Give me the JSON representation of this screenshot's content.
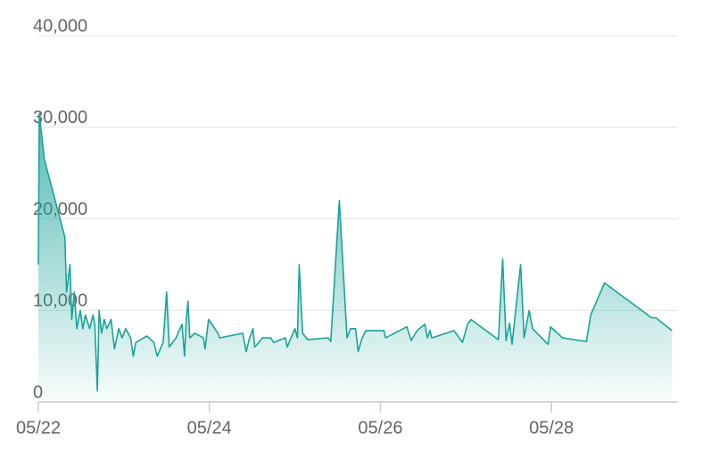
{
  "chart_data": {
    "type": "area",
    "color": "#1aa39a",
    "grid": true,
    "xlim": [
      22,
      29.48
    ],
    "xticks": [
      {
        "value": 22,
        "label": "05/22"
      },
      {
        "value": 24,
        "label": "05/24"
      },
      {
        "value": 26,
        "label": "05/26"
      },
      {
        "value": 28,
        "label": "05/28"
      }
    ],
    "ylim": [
      0,
      40000
    ],
    "yticks": [
      0,
      {
        "value": 10000,
        "label": "10,000"
      },
      {
        "value": 20000,
        "label": "20,000"
      },
      {
        "value": 30000,
        "label": "30,000"
      },
      {
        "value": 40000,
        "label": "40,000"
      }
    ],
    "x": [
      22.0,
      22.01,
      22.07,
      22.31,
      22.33,
      22.37,
      22.39,
      22.42,
      22.45,
      22.49,
      22.52,
      22.55,
      22.6,
      22.64,
      22.66,
      22.69,
      22.71,
      22.74,
      22.77,
      22.8,
      22.85,
      22.89,
      22.94,
      22.98,
      23.02,
      23.08,
      23.11,
      23.14,
      23.27,
      23.35,
      23.39,
      23.46,
      23.5,
      23.53,
      23.61,
      23.68,
      23.71,
      23.73,
      23.75,
      23.77,
      23.83,
      23.93,
      23.95,
      23.99,
      24.1,
      24.12,
      24.39,
      24.43,
      24.47,
      24.51,
      24.53,
      24.58,
      24.62,
      24.72,
      24.75,
      24.89,
      24.91,
      25.0,
      25.03,
      25.05,
      25.09,
      25.15,
      25.39,
      25.42,
      25.52,
      25.61,
      25.65,
      25.71,
      25.74,
      25.78,
      25.83,
      26.04,
      26.06,
      26.31,
      26.36,
      26.43,
      26.52,
      26.55,
      26.58,
      26.6,
      26.67,
      26.86,
      26.96,
      27.02,
      27.06,
      27.38,
      27.43,
      27.47,
      27.51,
      27.54,
      27.64,
      27.68,
      27.74,
      27.78,
      27.96,
      27.99,
      28.13,
      28.41,
      28.46,
      28.62,
      29.17,
      29.22,
      29.41
    ],
    "values": [
      15000,
      31500,
      26500,
      18000,
      12000,
      15000,
      9000,
      12000,
      8000,
      10000,
      8000,
      9500,
      8000,
      9500,
      8500,
      1200,
      10000,
      7500,
      9000,
      8000,
      9000,
      5800,
      8000,
      7000,
      8000,
      7000,
      5000,
      6500,
      7200,
      6500,
      5000,
      6500,
      12000,
      6000,
      7000,
      8500,
      5000,
      9000,
      11000,
      7000,
      7500,
      7000,
      5800,
      9000,
      7500,
      7000,
      7500,
      5500,
      7000,
      8000,
      6000,
      6500,
      7000,
      7000,
      6500,
      7000,
      6000,
      8000,
      7000,
      15000,
      7500,
      6800,
      7000,
      6600,
      22000,
      7000,
      8000,
      8000,
      5500,
      6800,
      7800,
      7800,
      7000,
      8200,
      6700,
      7800,
      8500,
      7000,
      7800,
      7000,
      7200,
      7800,
      6500,
      8500,
      9000,
      6800,
      15600,
      6700,
      8600,
      6300,
      15000,
      7000,
      10000,
      8000,
      6300,
      8200,
      7000,
      6600,
      9500,
      13000,
      9200,
      9200,
      7800
    ]
  }
}
